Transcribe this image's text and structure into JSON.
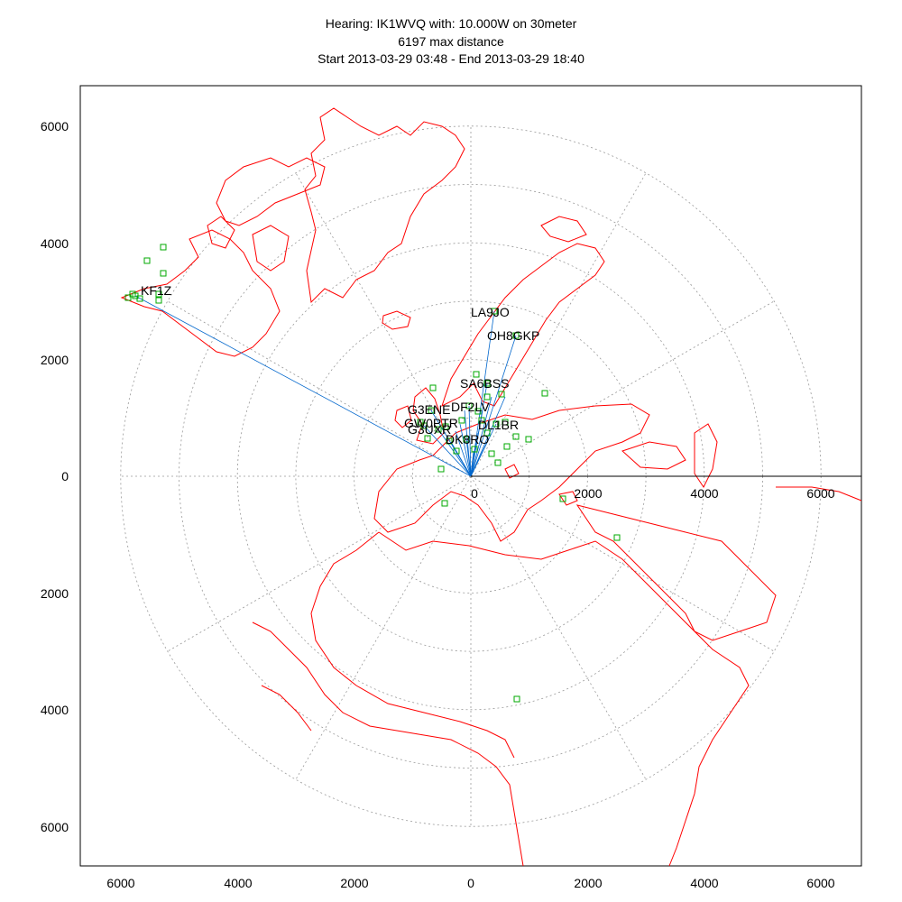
{
  "header": {
    "title_line1": "Hearing: IK1WVQ with: 10.000W on 30meter",
    "title_line2": "6197 max distance",
    "title_line3": "Start 2013-03-29 03:48 - End 2013-03-29 18:40"
  },
  "axes": {
    "left_ticks": [
      "6000",
      "4000",
      "2000",
      "0",
      "2000",
      "4000",
      "6000"
    ],
    "bottom_ticks": [
      "6000",
      "4000",
      "2000",
      "0",
      "2000",
      "4000",
      "6000"
    ],
    "inner_ticks": [
      "0",
      "2000",
      "4000",
      "6000"
    ]
  },
  "colors": {
    "coast": "#ff0000",
    "station_marker": "#00aa00",
    "path_line": "#0066cc",
    "grid": "#999999"
  },
  "map": {
    "projection": "azimuthal equidistant centred on IK1WVQ",
    "range_rings_km": [
      1000,
      2000,
      3000,
      4000,
      5000,
      6000
    ],
    "stations": [
      {
        "call": "KF1Z"
      },
      {
        "call": "LA9JO"
      },
      {
        "call": "OH8GKP"
      },
      {
        "call": "SA6BSS"
      },
      {
        "call": "DF2LV"
      },
      {
        "call": "G3ENE"
      },
      {
        "call": "GW0PTR"
      },
      {
        "call": "G3UXR"
      },
      {
        "call": "DK8RO"
      },
      {
        "call": "DL1BR"
      }
    ]
  }
}
